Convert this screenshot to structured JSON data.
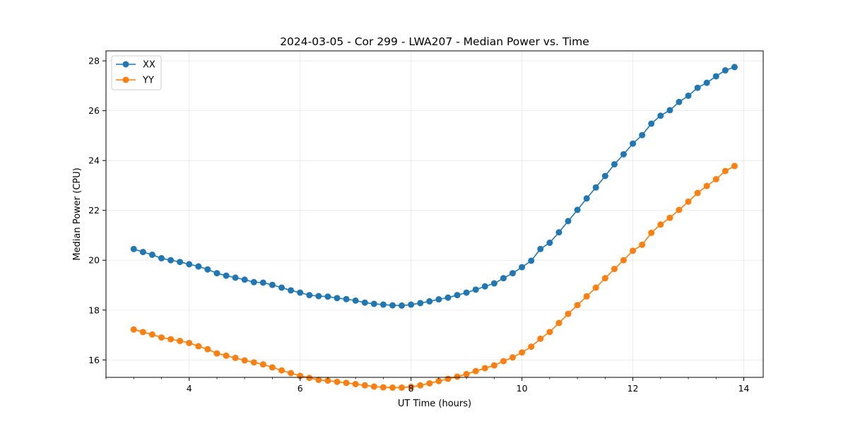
{
  "chart_data": {
    "type": "line",
    "title": "2024-03-05 - Cor 299 - LWA207 - Median Power vs. Time",
    "xlabel": "UT Time (hours)",
    "ylabel": "Median Power (CPU)",
    "xlim": [
      2.5,
      14.35
    ],
    "ylim": [
      15.3,
      28.4
    ],
    "xticks": [
      4,
      6,
      8,
      10,
      12,
      14
    ],
    "xtick_labels": [
      "4",
      "6",
      "8",
      "10",
      "12",
      "14"
    ],
    "xminor_ticks": [
      2.5,
      3.0,
      3.5,
      4.5,
      5.0,
      5.5,
      6.5,
      7.0,
      7.5,
      8.5,
      9.0,
      9.5,
      10.5,
      11.0,
      11.5,
      12.5,
      13.0,
      13.5
    ],
    "yticks": [
      16,
      18,
      20,
      22,
      24,
      26,
      28
    ],
    "ytick_labels": [
      "16",
      "18",
      "20",
      "22",
      "24",
      "26",
      "28"
    ],
    "grid": true,
    "legend_position": "top-left",
    "x": [
      3.0,
      3.167,
      3.333,
      3.5,
      3.667,
      3.833,
      4.0,
      4.167,
      4.333,
      4.5,
      4.667,
      4.833,
      5.0,
      5.167,
      5.333,
      5.5,
      5.667,
      5.833,
      6.0,
      6.167,
      6.333,
      6.5,
      6.667,
      6.833,
      7.0,
      7.167,
      7.333,
      7.5,
      7.667,
      7.833,
      8.0,
      8.167,
      8.333,
      8.5,
      8.667,
      8.833,
      9.0,
      9.167,
      9.333,
      9.5,
      9.667,
      9.833,
      10.0,
      10.167,
      10.333,
      10.5,
      10.667,
      10.833,
      11.0,
      11.167,
      11.333,
      11.5,
      11.667,
      11.833,
      12.0,
      12.167,
      12.333,
      12.5,
      12.667,
      12.833,
      13.0,
      13.167,
      13.333,
      13.5,
      13.667,
      13.833
    ],
    "series": [
      {
        "name": "XX",
        "color": "#1f77b4",
        "values": [
          20.45,
          20.33,
          20.22,
          20.08,
          20.0,
          19.93,
          19.84,
          19.75,
          19.63,
          19.48,
          19.38,
          19.3,
          19.22,
          19.12,
          19.1,
          19.01,
          18.9,
          18.79,
          18.7,
          18.6,
          18.56,
          18.54,
          18.48,
          18.44,
          18.38,
          18.3,
          18.25,
          18.22,
          18.19,
          18.18,
          18.22,
          18.28,
          18.35,
          18.43,
          18.5,
          18.6,
          18.7,
          18.82,
          18.95,
          19.07,
          19.28,
          19.48,
          19.72,
          19.98,
          20.45,
          20.7,
          21.12,
          21.57,
          22.02,
          22.48,
          22.92,
          23.38,
          23.85,
          24.25,
          24.68,
          25.02,
          25.48,
          25.8,
          26.02,
          26.35,
          26.6,
          26.92,
          27.12,
          27.38,
          27.62,
          27.75
        ]
      },
      {
        "name": "YY",
        "color": "#ff7f0e",
        "values": [
          17.22,
          17.12,
          17.02,
          16.9,
          16.83,
          16.76,
          16.68,
          16.55,
          16.43,
          16.26,
          16.17,
          16.08,
          15.98,
          15.9,
          15.82,
          15.7,
          15.58,
          15.47,
          15.36,
          15.28,
          15.2,
          15.17,
          15.12,
          15.08,
          15.03,
          14.98,
          14.93,
          14.9,
          14.89,
          14.89,
          14.92,
          14.98,
          15.06,
          15.15,
          15.24,
          15.33,
          15.43,
          15.55,
          15.67,
          15.78,
          15.95,
          16.1,
          16.3,
          16.53,
          16.85,
          17.12,
          17.48,
          17.85,
          18.2,
          18.55,
          18.9,
          19.28,
          19.65,
          20.0,
          20.38,
          20.62,
          21.1,
          21.43,
          21.7,
          22.02,
          22.35,
          22.7,
          22.98,
          23.25,
          23.58,
          23.78
        ]
      }
    ]
  }
}
